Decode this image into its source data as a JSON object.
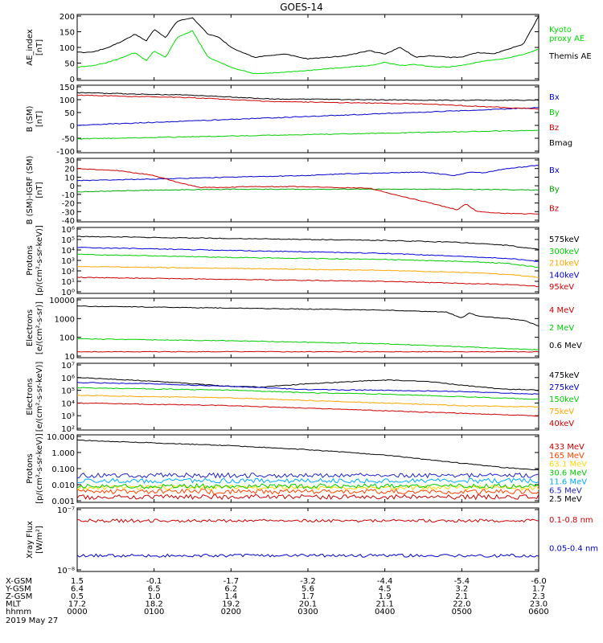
{
  "title": "GOES-14",
  "date": "2019 May 27",
  "bottom_rows": [
    {
      "label": "X-GSM",
      "values": [
        "1.5",
        "-0.1",
        "-1.7",
        "-3.2",
        "-4.4",
        "-5.4",
        "-6.0"
      ]
    },
    {
      "label": "Y-GSM",
      "values": [
        "6.4",
        "6.5",
        "6.2",
        "5.6",
        "4.5",
        "3.2",
        "1.7"
      ]
    },
    {
      "label": "Z-GSM",
      "values": [
        "0.5",
        "1.0",
        "1.4",
        "1.7",
        "1.9",
        "2.1",
        "2.3"
      ]
    },
    {
      "label": "MLT",
      "values": [
        "17.2",
        "18.2",
        "19.2",
        "20.1",
        "21.1",
        "22.0",
        "23.0"
      ]
    },
    {
      "label": "hhmm",
      "values": [
        "0000",
        "0100",
        "0200",
        "0300",
        "0400",
        "0500",
        "0600"
      ]
    }
  ],
  "chart_data": [
    {
      "type": "line",
      "ylabel": "AE_index\n[nT]",
      "ylim": [
        0,
        200
      ],
      "log": false,
      "ticks": [
        "0",
        "50",
        "100",
        "150",
        "200"
      ],
      "series": [
        {
          "name": "Kyoto proxy AE",
          "color": "#00dd00",
          "x": [
            0,
            0.2,
            0.4,
            0.6,
            0.75,
            0.9,
            1.0,
            1.15,
            1.3,
            1.5,
            1.7,
            1.85,
            2.0,
            2.3,
            2.7,
            3.0,
            3.5,
            3.8,
            4.0,
            4.2,
            4.4,
            4.6,
            4.8,
            5.0,
            5.2,
            5.4,
            5.6,
            5.8,
            6.0
          ],
          "y": [
            40,
            45,
            55,
            70,
            85,
            60,
            90,
            70,
            130,
            150,
            70,
            55,
            40,
            20,
            25,
            30,
            40,
            45,
            55,
            45,
            48,
            42,
            40,
            45,
            55,
            62,
            68,
            78,
            95
          ]
        },
        {
          "name": "Themis AE",
          "color": "#000000",
          "x": [
            0,
            0.2,
            0.4,
            0.6,
            0.75,
            0.9,
            1.0,
            1.15,
            1.3,
            1.5,
            1.7,
            1.85,
            2.0,
            2.3,
            2.7,
            3.0,
            3.5,
            3.8,
            4.0,
            4.2,
            4.4,
            4.6,
            4.8,
            5.0,
            5.2,
            5.4,
            5.6,
            5.8,
            6.0
          ],
          "y": [
            85,
            85,
            100,
            120,
            140,
            120,
            155,
            130,
            180,
            190,
            140,
            130,
            100,
            70,
            80,
            65,
            75,
            90,
            80,
            100,
            70,
            75,
            70,
            70,
            85,
            80,
            95,
            110,
            195
          ]
        }
      ]
    },
    {
      "type": "line",
      "ylabel": "B (SM)\n[nT]",
      "ylim": [
        -110,
        160
      ],
      "log": false,
      "ticks": [
        "-100",
        "-50",
        "0",
        "50",
        "100",
        "150"
      ],
      "series": [
        {
          "name": "Bx",
          "color": "#0000cc",
          "x": [
            0,
            6
          ],
          "y": [
            0,
            70
          ]
        },
        {
          "name": "By",
          "color": "#00cc00",
          "x": [
            0,
            6
          ],
          "y": [
            -55,
            -20
          ]
        },
        {
          "name": "Bz",
          "color": "#cc0000",
          "x": [
            0,
            1.5,
            2.5,
            4.5,
            6
          ],
          "y": [
            120,
            110,
            95,
            85,
            65
          ]
        },
        {
          "name": "Bmag",
          "color": "#000000",
          "x": [
            0,
            1.5,
            2.5,
            4.5,
            6
          ],
          "y": [
            130,
            120,
            105,
            100,
            100
          ]
        }
      ]
    },
    {
      "type": "line",
      "ylabel": "B (SM)-IGRF (SM)\n[nT]",
      "ylim": [
        -42,
        32
      ],
      "log": false,
      "ticks": [
        "-40",
        "-30",
        "-20",
        "-10",
        "0",
        "10",
        "20",
        "30"
      ],
      "series": [
        {
          "name": "Bx",
          "color": "#0000cc",
          "x": [
            0,
            0.5,
            1.0,
            1.5,
            2.0,
            2.5,
            3.0,
            3.5,
            4.0,
            4.5,
            4.9,
            5.1,
            5.3,
            5.5,
            5.7,
            6.0
          ],
          "y": [
            6,
            7,
            8,
            9,
            10,
            11,
            12,
            14,
            15,
            16,
            12,
            16,
            15,
            19,
            21,
            24
          ]
        },
        {
          "name": "By",
          "color": "#00aa00",
          "x": [
            0,
            1,
            2,
            3,
            4,
            5,
            6
          ],
          "y": [
            -7,
            -5,
            -4,
            -4,
            -4,
            -4,
            -5
          ]
        },
        {
          "name": "Bz",
          "color": "#cc0000",
          "x": [
            0,
            0.5,
            1.0,
            1.3,
            1.6,
            1.9,
            2.2,
            3.0,
            3.8,
            4.2,
            4.5,
            4.8,
            4.95,
            5.05,
            5.2,
            5.5,
            6.0
          ],
          "y": [
            20,
            18,
            12,
            4,
            -2,
            -2,
            -1,
            -1,
            -3,
            -12,
            -18,
            -25,
            -28,
            -21,
            -30,
            -32,
            -33
          ]
        }
      ]
    },
    {
      "type": "line",
      "ylabel": "Protons\n[p/(cm²-s-sr-keV)]",
      "ylim": [
        -0.3,
        6.3
      ],
      "log": true,
      "ticks": [
        "10⁰",
        "10¹",
        "10²",
        "10³",
        "10⁴",
        "10⁵",
        "10⁶"
      ],
      "series": [
        {
          "name": "575keV",
          "color": "#000000",
          "x": [
            0,
            2,
            4,
            5,
            5.6,
            6
          ],
          "y": [
            5.4,
            5.2,
            5.0,
            4.8,
            4.5,
            4.1
          ]
        },
        {
          "name": "300keV",
          "color": "#00cc00",
          "x": [
            0,
            2,
            4,
            5,
            5.6,
            6
          ],
          "y": [
            3.6,
            3.3,
            3.1,
            2.9,
            2.7,
            2.3
          ]
        },
        {
          "name": "210keV",
          "color": "#ffa500",
          "x": [
            0,
            2,
            4,
            5,
            5.6,
            6
          ],
          "y": [
            2.4,
            2.2,
            2.0,
            1.8,
            1.6,
            1.3
          ]
        },
        {
          "name": "140keV",
          "color": "#0000dd",
          "x": [
            0,
            2,
            4,
            5,
            5.6,
            6
          ],
          "y": [
            4.3,
            4.0,
            3.7,
            3.4,
            3.2,
            2.9
          ]
        },
        {
          "name": "95keV",
          "color": "#cc0000",
          "x": [
            0,
            2,
            4,
            5,
            5.6,
            6
          ],
          "y": [
            1.3,
            1.1,
            0.9,
            0.7,
            0.6,
            0.4
          ]
        }
      ]
    },
    {
      "type": "line",
      "ylabel": "Electrons\n[e/(cm²-s-sr)]",
      "ylim": [
        1,
        4
      ],
      "log": true,
      "ticks": [
        "10",
        "100",
        "1000",
        "10000"
      ],
      "series": [
        {
          "name": "4 MeV",
          "color": "#cc0000",
          "x": [
            0,
            6
          ],
          "y": [
            1.3,
            1.3
          ]
        },
        {
          "name": "2 MeV",
          "color": "#00cc00",
          "x": [
            0,
            2,
            4,
            6
          ],
          "y": [
            1.95,
            1.85,
            1.7,
            1.4
          ]
        },
        {
          "name": "0.6 MeV",
          "color": "#000000",
          "x": [
            0,
            1,
            2,
            3,
            4,
            4.8,
            5.0,
            5.1,
            5.2,
            5.5,
            5.8,
            6.0
          ],
          "y": [
            3.6,
            3.55,
            3.5,
            3.45,
            3.4,
            3.3,
            3.0,
            3.25,
            3.1,
            3.0,
            2.9,
            2.6
          ]
        }
      ]
    },
    {
      "type": "line",
      "ylabel": "Electrons\n[e/(cm²-s-sr-keV)]",
      "ylim": [
        1.8,
        7
      ],
      "log": true,
      "ticks": [
        "10²",
        "10³",
        "10⁴",
        "10⁵",
        "10⁶",
        "10⁷"
      ],
      "series": [
        {
          "name": "475keV",
          "color": "#000000",
          "x": [
            0,
            1,
            2,
            2.4,
            3,
            3.5,
            4,
            4.5,
            5,
            5.5,
            6
          ],
          "y": [
            5.9,
            5.6,
            5.2,
            5.15,
            5.4,
            5.55,
            5.7,
            5.6,
            5.3,
            5.0,
            4.9
          ]
        },
        {
          "name": "275keV",
          "color": "#0000cc",
          "x": [
            0,
            1,
            2,
            3,
            4,
            5,
            6
          ],
          "y": [
            5.5,
            5.4,
            5.2,
            4.95,
            4.9,
            4.8,
            4.6
          ]
        },
        {
          "name": "150keV",
          "color": "#00cc00",
          "x": [
            0,
            1,
            2,
            3,
            4,
            5,
            6
          ],
          "y": [
            5.1,
            5.0,
            4.9,
            4.7,
            4.6,
            4.4,
            4.2
          ]
        },
        {
          "name": "75keV",
          "color": "#ffa500",
          "x": [
            0,
            1,
            2,
            3,
            4,
            5,
            6
          ],
          "y": [
            4.5,
            4.4,
            4.3,
            4.1,
            3.9,
            3.7,
            3.6
          ]
        },
        {
          "name": "40keV",
          "color": "#cc0000",
          "x": [
            0,
            1,
            2,
            3,
            4,
            5,
            6
          ],
          "y": [
            3.9,
            3.8,
            3.7,
            3.5,
            3.3,
            3.1,
            2.9
          ]
        }
      ]
    },
    {
      "type": "line",
      "ylabel": "Protons\n[p/(cm²-s-sr-keV)]",
      "ylim": [
        -3.1,
        1.9
      ],
      "log": true,
      "ticks": [
        "0.001",
        "0.010",
        "0.100",
        "1.000",
        "10.000"
      ],
      "series": [
        {
          "name": "433 MeV",
          "color": "#cc0000",
          "x": [
            0,
            6
          ],
          "y": [
            -2.7,
            -2.7
          ]
        },
        {
          "name": "165 MeV",
          "color": "#ff4400",
          "x": [
            0,
            6
          ],
          "y": [
            -2.3,
            -2.3
          ]
        },
        {
          "name": "63.1 MeV",
          "color": "#ffd700",
          "x": [
            0,
            6
          ],
          "y": [
            -2.0,
            -2.0
          ]
        },
        {
          "name": "30.6 MeV",
          "color": "#00cc00",
          "x": [
            0,
            6
          ],
          "y": [
            -1.9,
            -1.9
          ]
        },
        {
          "name": "11.6 MeV",
          "color": "#00aaff",
          "x": [
            0,
            6
          ],
          "y": [
            -1.5,
            -1.5
          ]
        },
        {
          "name": "6.5 MeV",
          "color": "#2222cc",
          "x": [
            0,
            6
          ],
          "y": [
            -1.1,
            -1.1
          ]
        },
        {
          "name": "2.5 MeV",
          "color": "#000000",
          "x": [
            0,
            1,
            2,
            3,
            4,
            5,
            5.5,
            6
          ],
          "y": [
            1.5,
            1.3,
            1.1,
            0.8,
            0.4,
            -0.2,
            -0.5,
            -0.7
          ]
        }
      ]
    },
    {
      "type": "line",
      "ylabel": "Xray Flux\n[W/m²]",
      "ylim": [
        -8,
        -7
      ],
      "log": true,
      "ticks": [
        "10⁻⁸",
        "10⁻⁷"
      ],
      "series": [
        {
          "name": "0.1-0.8 nm",
          "color": "#cc0000",
          "x": [
            0,
            6
          ],
          "y": [
            -7.2,
            -7.2
          ]
        },
        {
          "name": "0.05-0.4 nm",
          "color": "#0000cc",
          "x": [
            0,
            6
          ],
          "y": [
            -7.75,
            -7.75
          ]
        }
      ]
    }
  ]
}
